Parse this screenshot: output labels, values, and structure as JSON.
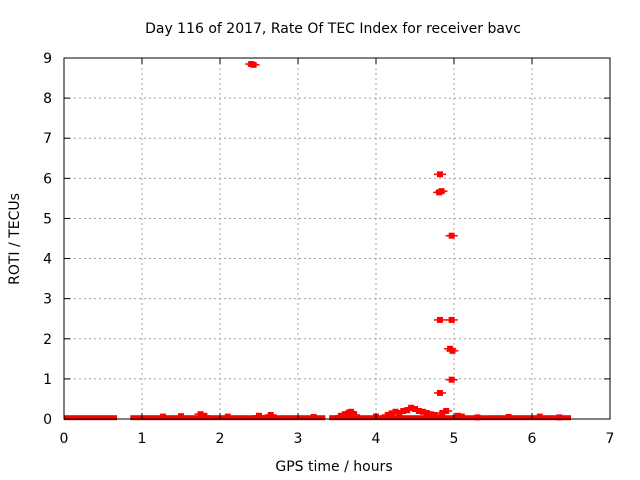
{
  "chart_data": {
    "type": "scatter",
    "title": "Day 116 of 2017, Rate Of TEC Index for receiver bavc",
    "xlabel": "GPS time / hours",
    "ylabel": "ROTI / TECUs",
    "xlim": [
      0,
      7
    ],
    "ylim": [
      0,
      9
    ],
    "xticks": [
      "0",
      "1",
      "2",
      "3",
      "4",
      "5",
      "6",
      "7"
    ],
    "yticks": [
      "0",
      "1",
      "2",
      "3",
      "4",
      "5",
      "6",
      "7",
      "8",
      "9"
    ],
    "grid": true,
    "marker_color": "#ff0000",
    "baseline_segments": [
      [
        0.0,
        0.68
      ],
      [
        0.85,
        3.35
      ],
      [
        3.4,
        6.5
      ]
    ],
    "baseline_y": 0.02,
    "series": [
      {
        "points": [
          [
            2.4,
            8.85
          ],
          [
            2.43,
            8.83
          ],
          [
            4.82,
            6.1
          ],
          [
            4.81,
            5.65
          ],
          [
            4.84,
            5.68
          ],
          [
            4.97,
            4.57
          ],
          [
            4.82,
            2.47
          ],
          [
            4.97,
            2.47
          ],
          [
            4.95,
            1.75
          ],
          [
            4.98,
            1.7
          ],
          [
            4.97,
            0.98
          ],
          [
            4.82,
            0.65
          ],
          [
            1.27,
            0.06
          ],
          [
            1.5,
            0.07
          ],
          [
            1.75,
            0.12
          ],
          [
            1.8,
            0.08
          ],
          [
            2.1,
            0.06
          ],
          [
            2.5,
            0.08
          ],
          [
            2.65,
            0.1
          ],
          [
            3.2,
            0.05
          ],
          [
            3.55,
            0.08
          ],
          [
            3.6,
            0.12
          ],
          [
            3.65,
            0.16
          ],
          [
            3.68,
            0.18
          ],
          [
            3.72,
            0.1
          ],
          [
            4.0,
            0.06
          ],
          [
            4.15,
            0.1
          ],
          [
            4.2,
            0.14
          ],
          [
            4.25,
            0.18
          ],
          [
            4.3,
            0.15
          ],
          [
            4.35,
            0.2
          ],
          [
            4.4,
            0.22
          ],
          [
            4.45,
            0.28
          ],
          [
            4.5,
            0.25
          ],
          [
            4.55,
            0.2
          ],
          [
            4.6,
            0.18
          ],
          [
            4.65,
            0.15
          ],
          [
            4.7,
            0.12
          ],
          [
            4.75,
            0.1
          ],
          [
            4.85,
            0.15
          ],
          [
            4.9,
            0.2
          ],
          [
            5.05,
            0.08
          ],
          [
            5.1,
            0.06
          ],
          [
            5.3,
            0.04
          ],
          [
            5.7,
            0.05
          ],
          [
            6.1,
            0.06
          ],
          [
            6.35,
            0.04
          ]
        ]
      }
    ]
  }
}
